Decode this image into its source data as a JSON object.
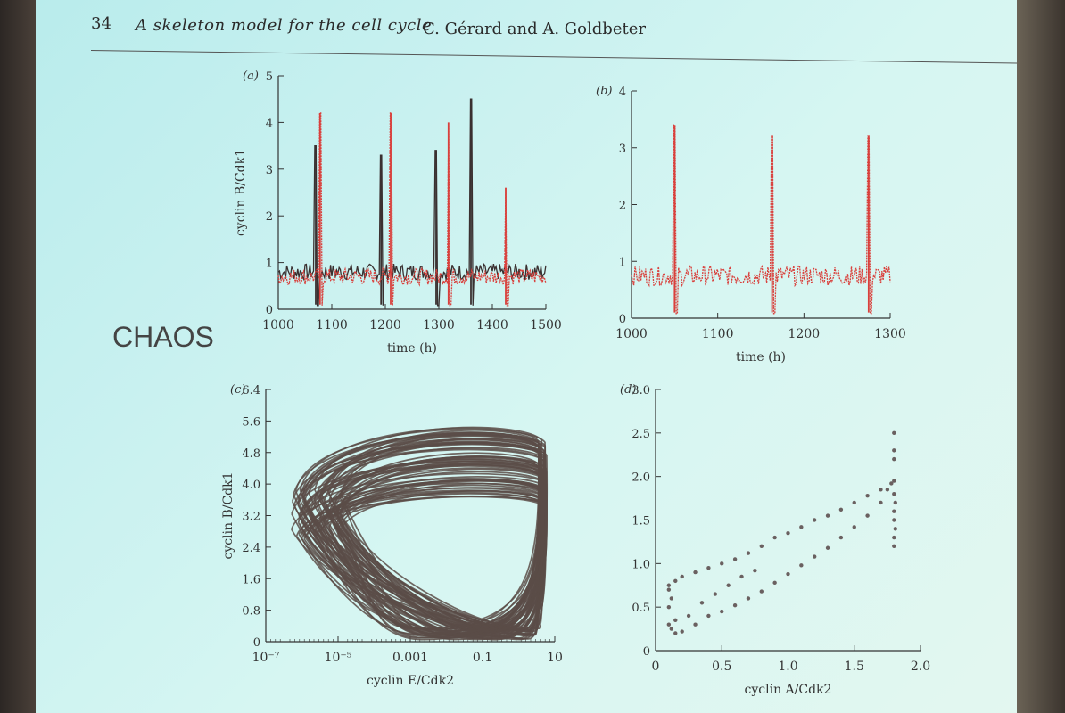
{
  "header": {
    "page_number": "34",
    "title": "A skeleton model for the cell cycle",
    "authors": "C. Gérard and A. Goldbeter"
  },
  "side_label": "CHAOS",
  "colors": {
    "red": "#d9403c",
    "dark": "#3a3030",
    "brown": "#5a4c48",
    "axis": "#333333"
  },
  "chart_data": [
    {
      "panel": "(a)",
      "type": "line",
      "xlabel": "time (h)",
      "ylabel": "cyclin B/Cdk1",
      "xlim": [
        1000,
        1500
      ],
      "ylim": [
        0,
        5
      ],
      "xticks": [
        "1000",
        "1100",
        "1200",
        "1300",
        "1400",
        "1500"
      ],
      "yticks": [
        "0",
        "1",
        "2",
        "3",
        "4",
        "5"
      ],
      "series": [
        {
          "color": "dark",
          "baseline": 0.8,
          "spikes": [
            [
              1070,
              3.5
            ],
            [
              1192,
              3.3
            ],
            [
              1295,
              3.4
            ],
            [
              1360,
              4.5
            ]
          ]
        },
        {
          "color": "red",
          "baseline": 0.7,
          "spikes": [
            [
              1078,
              4.2
            ],
            [
              1210,
              4.2
            ],
            [
              1318,
              4.0
            ],
            [
              1425,
              2.6
            ]
          ]
        }
      ]
    },
    {
      "panel": "(b)",
      "type": "line",
      "xlabel": "time (h)",
      "ylabel": "",
      "xlim": [
        1000,
        1300
      ],
      "ylim": [
        0,
        4
      ],
      "xticks": [
        "1000",
        "1100",
        "1200",
        "1300"
      ],
      "yticks": [
        "0",
        "1",
        "2",
        "3",
        "4"
      ],
      "series": [
        {
          "color": "red",
          "baseline": 0.75,
          "spikes": [
            [
              1050,
              3.4
            ],
            [
              1163,
              3.2
            ],
            [
              1275,
              3.2
            ]
          ]
        }
      ]
    },
    {
      "panel": "(c)",
      "type": "line",
      "xlabel": "cyclin E/Cdk2",
      "ylabel": "cyclin B/Cdk1",
      "xscale": "log",
      "xlim": [
        1e-07,
        10
      ],
      "ylim": [
        0,
        6.4
      ],
      "xticks": [
        "10⁻⁷",
        "10⁻⁵",
        "0.001",
        "0.1",
        "10"
      ],
      "yticks": [
        "0",
        "0.8",
        "1.6",
        "2.4",
        "3.2",
        "4.0",
        "4.8",
        "5.6",
        "6.4"
      ],
      "description_only_visual": true
    },
    {
      "panel": "(d)",
      "type": "scatter",
      "xlabel": "cyclin A/Cdk2",
      "ylabel": "",
      "xlim": [
        0,
        2.0
      ],
      "ylim": [
        0,
        3.0
      ],
      "xticks": [
        "0",
        "0.5",
        "1.0",
        "1.5",
        "2.0"
      ],
      "yticks": [
        "0",
        "0.5",
        "1.0",
        "1.5",
        "2.0",
        "2.5",
        "3.0"
      ],
      "points": [
        [
          0.1,
          0.3
        ],
        [
          0.12,
          0.25
        ],
        [
          0.15,
          0.2
        ],
        [
          0.2,
          0.22
        ],
        [
          0.3,
          0.3
        ],
        [
          0.4,
          0.4
        ],
        [
          0.5,
          0.45
        ],
        [
          0.6,
          0.52
        ],
        [
          0.7,
          0.6
        ],
        [
          0.8,
          0.68
        ],
        [
          0.9,
          0.78
        ],
        [
          1.0,
          0.88
        ],
        [
          1.1,
          0.98
        ],
        [
          1.2,
          1.08
        ],
        [
          1.3,
          1.18
        ],
        [
          1.4,
          1.3
        ],
        [
          1.5,
          1.42
        ],
        [
          1.6,
          1.55
        ],
        [
          1.7,
          1.7
        ],
        [
          1.75,
          1.85
        ],
        [
          0.1,
          0.75
        ],
        [
          0.15,
          0.8
        ],
        [
          0.2,
          0.85
        ],
        [
          0.3,
          0.9
        ],
        [
          0.4,
          0.95
        ],
        [
          0.5,
          1.0
        ],
        [
          0.6,
          1.05
        ],
        [
          0.7,
          1.12
        ],
        [
          0.8,
          1.2
        ],
        [
          0.9,
          1.3
        ],
        [
          1.0,
          1.35
        ],
        [
          1.1,
          1.42
        ],
        [
          1.2,
          1.5
        ],
        [
          1.3,
          1.55
        ],
        [
          1.4,
          1.62
        ],
        [
          1.5,
          1.7
        ],
        [
          1.6,
          1.78
        ],
        [
          1.7,
          1.85
        ],
        [
          1.78,
          1.92
        ],
        [
          1.8,
          1.95
        ],
        [
          0.1,
          0.5
        ],
        [
          0.12,
          0.6
        ],
        [
          0.1,
          0.7
        ],
        [
          0.15,
          0.35
        ],
        [
          0.25,
          0.4
        ],
        [
          0.35,
          0.55
        ],
        [
          0.45,
          0.65
        ],
        [
          0.55,
          0.75
        ],
        [
          0.65,
          0.85
        ],
        [
          0.75,
          0.92
        ],
        [
          1.8,
          1.2
        ],
        [
          1.8,
          1.3
        ],
        [
          1.81,
          1.4
        ],
        [
          1.8,
          1.5
        ],
        [
          1.8,
          1.6
        ],
        [
          1.81,
          1.7
        ],
        [
          1.8,
          1.8
        ],
        [
          1.8,
          2.2
        ],
        [
          1.8,
          2.5
        ],
        [
          1.8,
          2.3
        ]
      ]
    }
  ]
}
